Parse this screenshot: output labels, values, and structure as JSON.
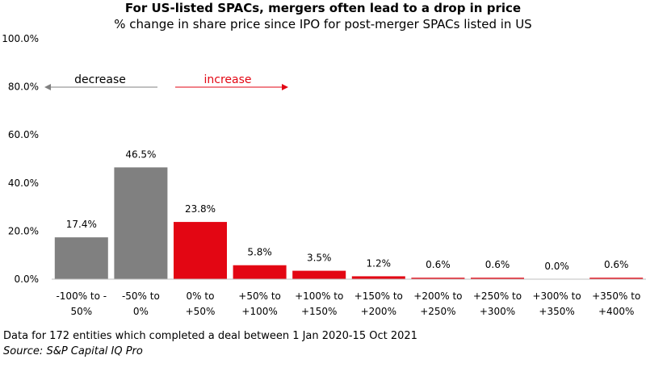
{
  "chart_data": {
    "type": "bar",
    "title": "For US-listed SPACs, mergers often lead to a drop in price",
    "subtitle": "% change in share price since IPO for post-merger SPACs listed in US",
    "categories": [
      [
        "-100% to -",
        "50%"
      ],
      [
        "-50% to",
        "0%"
      ],
      [
        "0% to",
        "+50%"
      ],
      [
        "+50% to",
        "+100%"
      ],
      [
        "+100% to",
        "+150%"
      ],
      [
        "+150% to",
        "+200%"
      ],
      [
        "+200% to",
        "+250%"
      ],
      [
        "+250% to",
        "+300%"
      ],
      [
        "+300% to",
        "+350%"
      ],
      [
        "+350% to",
        "+400%"
      ]
    ],
    "values": [
      17.4,
      46.5,
      23.8,
      5.8,
      3.5,
      1.2,
      0.6,
      0.6,
      0.0,
      0.6
    ],
    "value_labels": [
      "17.4%",
      "46.5%",
      "23.8%",
      "5.8%",
      "3.5%",
      "1.2%",
      "0.6%",
      "0.6%",
      "0.0%",
      "0.6%"
    ],
    "bar_groups": [
      "decrease",
      "decrease",
      "increase",
      "increase",
      "increase",
      "increase",
      "increase",
      "increase",
      "increase",
      "increase"
    ],
    "colors": {
      "decrease": "#808080",
      "increase": "#e30613"
    },
    "ylim": [
      0,
      100
    ],
    "yticks": [
      0,
      20,
      40,
      60,
      80,
      100
    ],
    "ytick_labels": [
      "0.0%",
      "20.0%",
      "40.0%",
      "60.0%",
      "80.0%",
      "100.0%"
    ],
    "xlabel": "",
    "ylabel": "",
    "grid": false,
    "annotations": {
      "decrease_label": "decrease",
      "increase_label": "increase"
    }
  },
  "footer": {
    "note": "Data for 172 entities which completed a deal between 1 Jan 2020-15 Oct 2021",
    "source": "Source: S&P Capital IQ Pro"
  }
}
